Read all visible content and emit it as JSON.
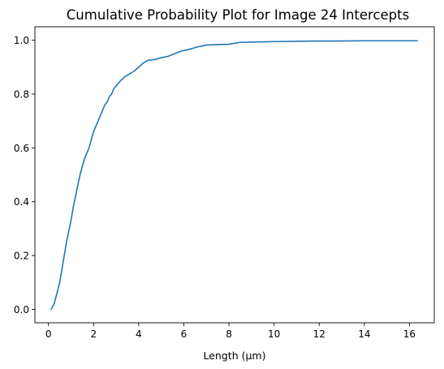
{
  "chart_data": {
    "type": "line",
    "title": "Cumulative Probability Plot for Image 24 Intercepts",
    "xlabel": "Length (μm)",
    "ylabel": "",
    "xlim": [
      -0.6,
      17.1
    ],
    "ylim": [
      -0.05,
      1.05
    ],
    "xticks": [
      0,
      2,
      4,
      6,
      8,
      10,
      12,
      14,
      16
    ],
    "yticks": [
      0.0,
      0.2,
      0.4,
      0.6,
      0.8,
      1.0
    ],
    "xtick_labels": [
      "0",
      "2",
      "4",
      "6",
      "8",
      "10",
      "12",
      "14",
      "16"
    ],
    "ytick_labels": [
      "0.0",
      "0.2",
      "0.4",
      "0.6",
      "0.8",
      "1.0"
    ],
    "grid": false,
    "series": [
      {
        "name": "",
        "color": "#1f77b4",
        "x": [
          0.12,
          0.25,
          0.38,
          0.5,
          0.6,
          0.7,
          0.8,
          0.9,
          1.0,
          1.1,
          1.2,
          1.3,
          1.4,
          1.5,
          1.6,
          1.7,
          1.8,
          1.9,
          2.0,
          2.1,
          2.2,
          2.3,
          2.4,
          2.5,
          2.6,
          2.7,
          2.8,
          2.9,
          3.0,
          3.2,
          3.4,
          3.6,
          3.8,
          4.0,
          4.2,
          4.4,
          4.6,
          4.8,
          5.0,
          5.3,
          5.6,
          5.9,
          6.2,
          6.6,
          7.0,
          7.5,
          8.0,
          8.5,
          9.0,
          10.0,
          11.0,
          12.0,
          13.0,
          14.0,
          15.0,
          16.35
        ],
        "y": [
          0.0,
          0.02,
          0.06,
          0.1,
          0.15,
          0.2,
          0.25,
          0.29,
          0.33,
          0.38,
          0.42,
          0.46,
          0.5,
          0.53,
          0.56,
          0.58,
          0.6,
          0.63,
          0.66,
          0.68,
          0.7,
          0.72,
          0.74,
          0.76,
          0.77,
          0.79,
          0.8,
          0.82,
          0.83,
          0.85,
          0.865,
          0.875,
          0.885,
          0.9,
          0.915,
          0.925,
          0.927,
          0.93,
          0.935,
          0.94,
          0.95,
          0.96,
          0.965,
          0.975,
          0.982,
          0.984,
          0.985,
          0.992,
          0.993,
          0.995,
          0.996,
          0.997,
          0.997,
          0.998,
          0.998,
          0.998
        ]
      }
    ]
  }
}
